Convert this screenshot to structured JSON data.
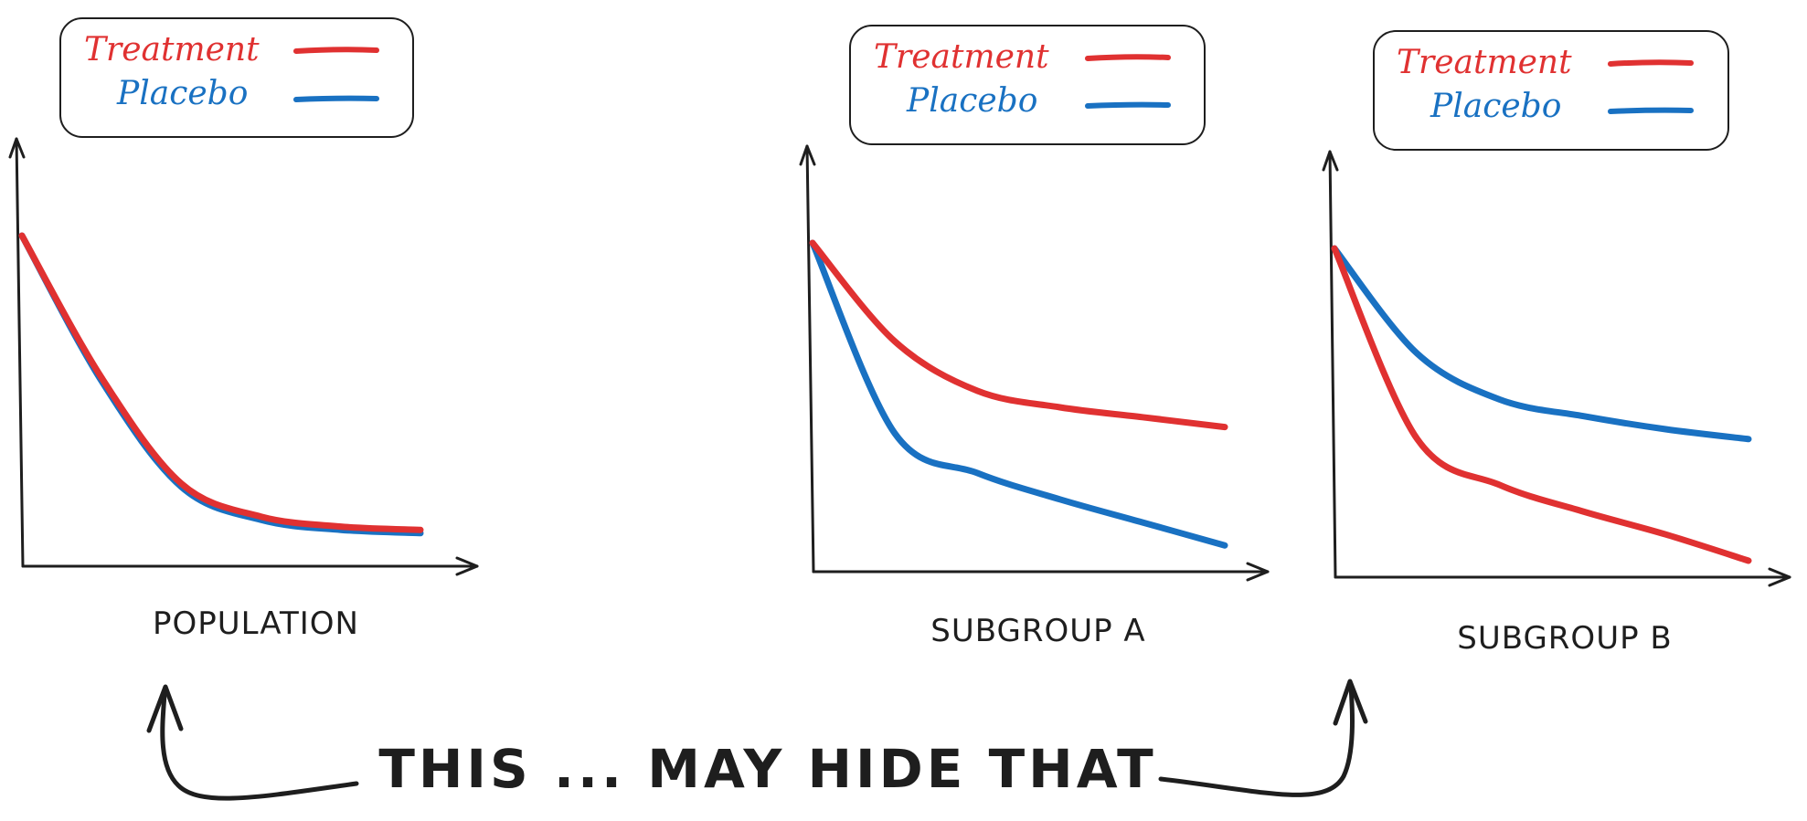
{
  "colors": {
    "treatment": "#e03131",
    "placebo": "#1971c2",
    "ink": "#1e1e1e",
    "background": "#ffffff"
  },
  "legend": {
    "treatment_label": "Treatment",
    "placebo_label": "Placebo"
  },
  "panels": [
    {
      "caption": "POPULATION"
    },
    {
      "caption": "SUBGROUP A"
    },
    {
      "caption": "SUBGROUP B"
    }
  ],
  "headline": "THIS ... MAY HIDE THAT",
  "chart_data": [
    {
      "type": "line",
      "title": "POPULATION",
      "series": [
        {
          "name": "Treatment",
          "x": [
            0,
            1,
            2,
            3,
            4,
            5
          ],
          "y": [
            100,
            57,
            25,
            15,
            12,
            11
          ]
        },
        {
          "name": "Placebo",
          "x": [
            0,
            1,
            2,
            3,
            4,
            5
          ],
          "y": [
            100,
            56,
            24,
            14,
            11,
            10
          ]
        }
      ]
    },
    {
      "type": "line",
      "title": "SUBGROUP A",
      "series": [
        {
          "name": "Treatment",
          "x": [
            0,
            1,
            2,
            3,
            4,
            5
          ],
          "y": [
            100,
            70,
            55,
            50,
            47,
            44
          ]
        },
        {
          "name": "Placebo",
          "x": [
            0,
            1,
            2,
            3,
            4,
            5
          ],
          "y": [
            100,
            42,
            30,
            22,
            15,
            8
          ]
        }
      ]
    },
    {
      "type": "line",
      "title": "SUBGROUP B",
      "series": [
        {
          "name": "Treatment",
          "x": [
            0,
            1,
            2,
            3,
            4,
            5
          ],
          "y": [
            100,
            42,
            28,
            20,
            13,
            5
          ]
        },
        {
          "name": "Placebo",
          "x": [
            0,
            1,
            2,
            3,
            4,
            5
          ],
          "y": [
            100,
            68,
            54,
            49,
            45,
            42
          ]
        }
      ]
    }
  ]
}
